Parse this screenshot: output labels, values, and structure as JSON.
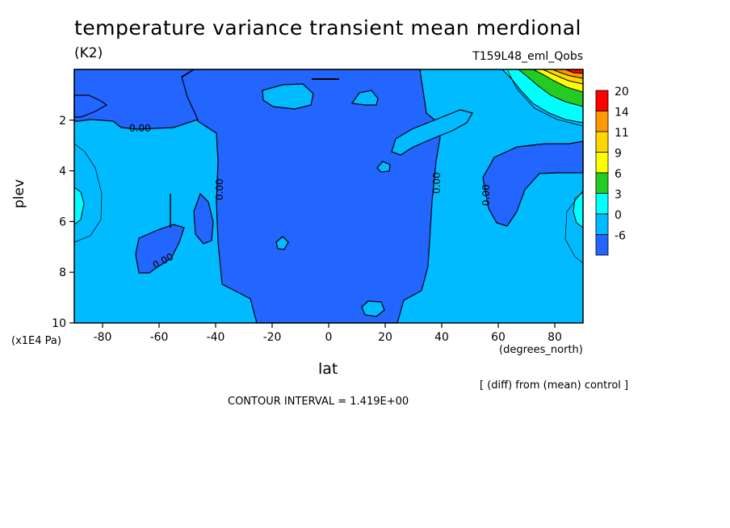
{
  "chart_data": {
    "type": "contour",
    "title": "temperature variance transient mean merdional",
    "units": "(K2)",
    "run_label": "T159L48_eml_Qobs",
    "xlabel": "lat",
    "x_unit": "(degrees_north)",
    "ylabel": "plev",
    "y_unit": "(x1E4 Pa)",
    "x_ticks": [
      "-80",
      "-60",
      "-40",
      "-20",
      "0",
      "20",
      "40",
      "60",
      "80"
    ],
    "y_ticks": [
      "2",
      "4",
      "6",
      "8",
      "10"
    ],
    "xlim": [
      -90,
      90
    ],
    "ylim": [
      10,
      0
    ],
    "colorbar": {
      "labels": [
        "20",
        "14",
        "11",
        "9",
        "6",
        "3",
        "0",
        "-6"
      ],
      "colors": [
        "#ff0000",
        "#ff9900",
        "#ffd700",
        "#ffff00",
        "#22cc22",
        "#00ffff",
        "#00bbff",
        "#2266ff"
      ]
    },
    "contour_labels": [
      "0.00",
      "0.00",
      "0.00",
      "0.00",
      "0.00"
    ],
    "note": "[ (diff) from (mean) control ]",
    "contour_interval": "CONTOUR INTERVAL = 1.419E+00"
  }
}
